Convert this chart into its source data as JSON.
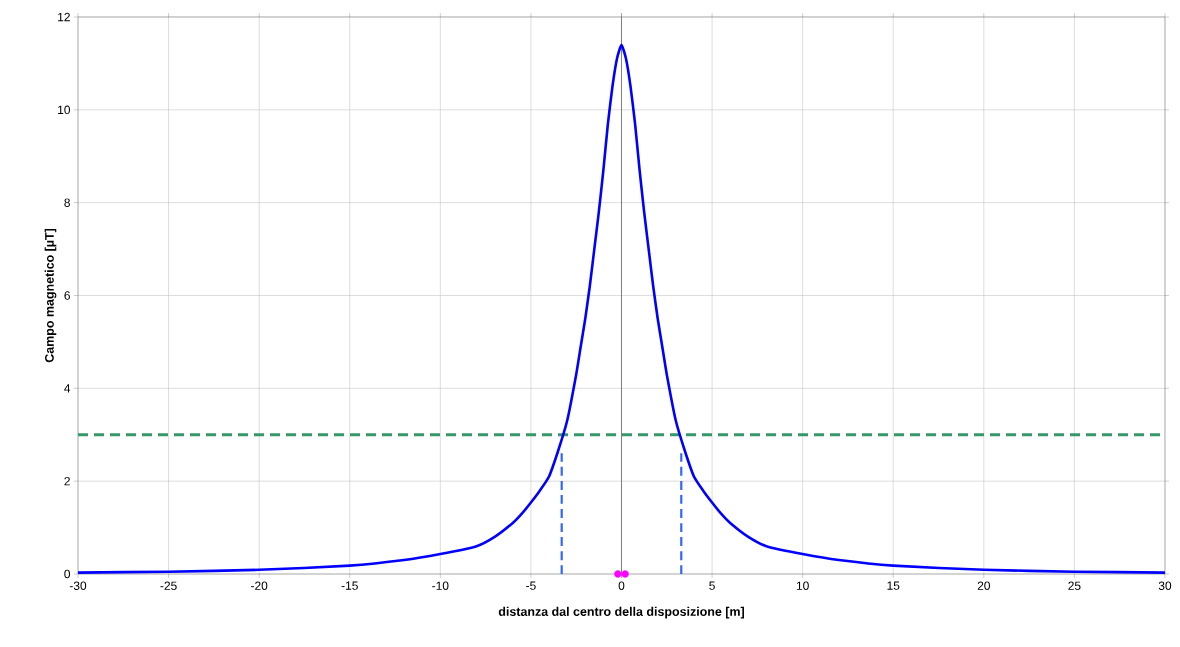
{
  "chart_data": {
    "type": "line",
    "xlabel": "distanza dal centro della disposizione [m]",
    "ylabel": "Campo magnetico [µT]",
    "xlim": [
      -30,
      30
    ],
    "ylim": [
      0,
      12
    ],
    "xticks": [
      -30,
      -25,
      -20,
      -15,
      -10,
      -5,
      0,
      5,
      10,
      15,
      20,
      25,
      30
    ],
    "yticks": [
      0,
      2,
      4,
      6,
      8,
      10,
      12
    ],
    "grid": true,
    "marker": "none",
    "line_style": "solid",
    "series": [
      {
        "color": "#0000ff",
        "x": [
          -30,
          -25,
          -20,
          -15,
          -12,
          -10,
          -8,
          -7,
          -6,
          -5.5,
          -5,
          -4.5,
          -4,
          -3.5,
          -3,
          -2.5,
          -2.25,
          -2,
          -1.75,
          -1.5,
          -1.25,
          -1,
          -0.75,
          -0.5,
          -0.25,
          0,
          0.25,
          0.5,
          0.75,
          1,
          1.25,
          1.5,
          1.75,
          2,
          2.25,
          2.5,
          3,
          3.5,
          4,
          4.5,
          5,
          5.5,
          6,
          7,
          8,
          10,
          12,
          15,
          20,
          25,
          30
        ],
        "values": [
          0.03,
          0.05,
          0.09,
          0.18,
          0.3,
          0.43,
          0.6,
          0.8,
          1.1,
          1.3,
          1.54,
          1.8,
          2.1,
          2.65,
          3.3,
          4.3,
          4.9,
          5.5,
          6.2,
          7.0,
          7.8,
          8.7,
          9.7,
          10.5,
          11.1,
          11.4,
          11.1,
          10.5,
          9.7,
          8.7,
          7.8,
          7.0,
          6.2,
          5.5,
          4.9,
          4.3,
          3.3,
          2.65,
          2.1,
          1.8,
          1.54,
          1.3,
          1.1,
          0.8,
          0.6,
          0.43,
          0.3,
          0.18,
          0.09,
          0.05,
          0.03
        ]
      },
      {
        "color": "#3366ff",
        "line_style": "dashed",
        "x": [
          -3.3,
          -3.3
        ],
        "values": [
          0,
          2.6
        ]
      },
      {
        "color": "#3366ff",
        "line_style": "dashed",
        "x": [
          3.3,
          3.3
        ],
        "values": [
          0,
          2.6
        ]
      },
      {
        "type": "scatter",
        "marker": "circle",
        "color": "#ff00ff",
        "x": [
          -0.2,
          0.2
        ],
        "values": [
          0,
          0
        ]
      }
    ],
    "ref_lines": [
      {
        "axis": "y",
        "value": 3,
        "color": "#339966",
        "line_style": "dashed"
      }
    ]
  }
}
